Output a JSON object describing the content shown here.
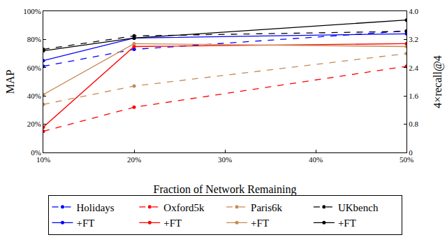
{
  "chart_data": {
    "type": "line",
    "x_label": "Fraction of Network Remaining",
    "y_label": "MAP",
    "y2_label": "4×recall@4",
    "x": [
      10,
      20,
      50
    ],
    "xlim": [
      10,
      50
    ],
    "xticks": [
      {
        "value": 10,
        "label": "10%"
      },
      {
        "value": 20,
        "label": "20%"
      },
      {
        "value": 30,
        "label": "30%"
      },
      {
        "value": 40,
        "label": "40%"
      },
      {
        "value": 50,
        "label": "50%"
      }
    ],
    "ylim": [
      0,
      100
    ],
    "yticks": [
      {
        "value": 0,
        "label": "0%"
      },
      {
        "value": 20,
        "label": "20%"
      },
      {
        "value": 40,
        "label": "40%"
      },
      {
        "value": 60,
        "label": "60%"
      },
      {
        "value": 80,
        "label": "80%"
      },
      {
        "value": 100,
        "label": "100%"
      }
    ],
    "y2lim": [
      0,
      4
    ],
    "y2ticks": [
      0,
      0.8,
      1.6,
      2.4,
      3.2,
      {
        "value": 4,
        "label": "4.0"
      }
    ],
    "grid": false,
    "legend": "bottom",
    "series": [
      {
        "name": "Holidays",
        "color": "#0000ff",
        "line_style": "dashed",
        "marker": "circle",
        "values": [
          61,
          73,
          86
        ]
      },
      {
        "name": "Oxford5k",
        "color": "#ff0000",
        "line_style": "dashed",
        "marker": "circle",
        "values": [
          15,
          32,
          61
        ]
      },
      {
        "name": "Paris6k",
        "color": "#c58a52",
        "line_style": "dashed",
        "marker": "circle",
        "values": [
          34,
          47,
          70
        ]
      },
      {
        "name": "UKbench",
        "color": "#000000",
        "line_style": "dashed",
        "marker": "circle",
        "axis": "y2",
        "values": [
          2.92,
          3.3,
          3.43
        ]
      },
      {
        "name": "+FT",
        "color": "#0000ff",
        "line_style": "solid",
        "marker": "circle",
        "values": [
          65,
          81,
          84
        ]
      },
      {
        "name": "+FT",
        "color": "#ff0000",
        "line_style": "solid",
        "marker": "circle",
        "values": [
          18,
          75,
          77
        ]
      },
      {
        "name": "+FT",
        "color": "#c58a52",
        "line_style": "solid",
        "marker": "circle",
        "values": [
          41,
          77,
          75
        ]
      },
      {
        "name": "+FT",
        "color": "#000000",
        "line_style": "solid",
        "marker": "circle",
        "axis": "y2",
        "values": [
          2.88,
          3.24,
          3.75
        ]
      }
    ]
  }
}
